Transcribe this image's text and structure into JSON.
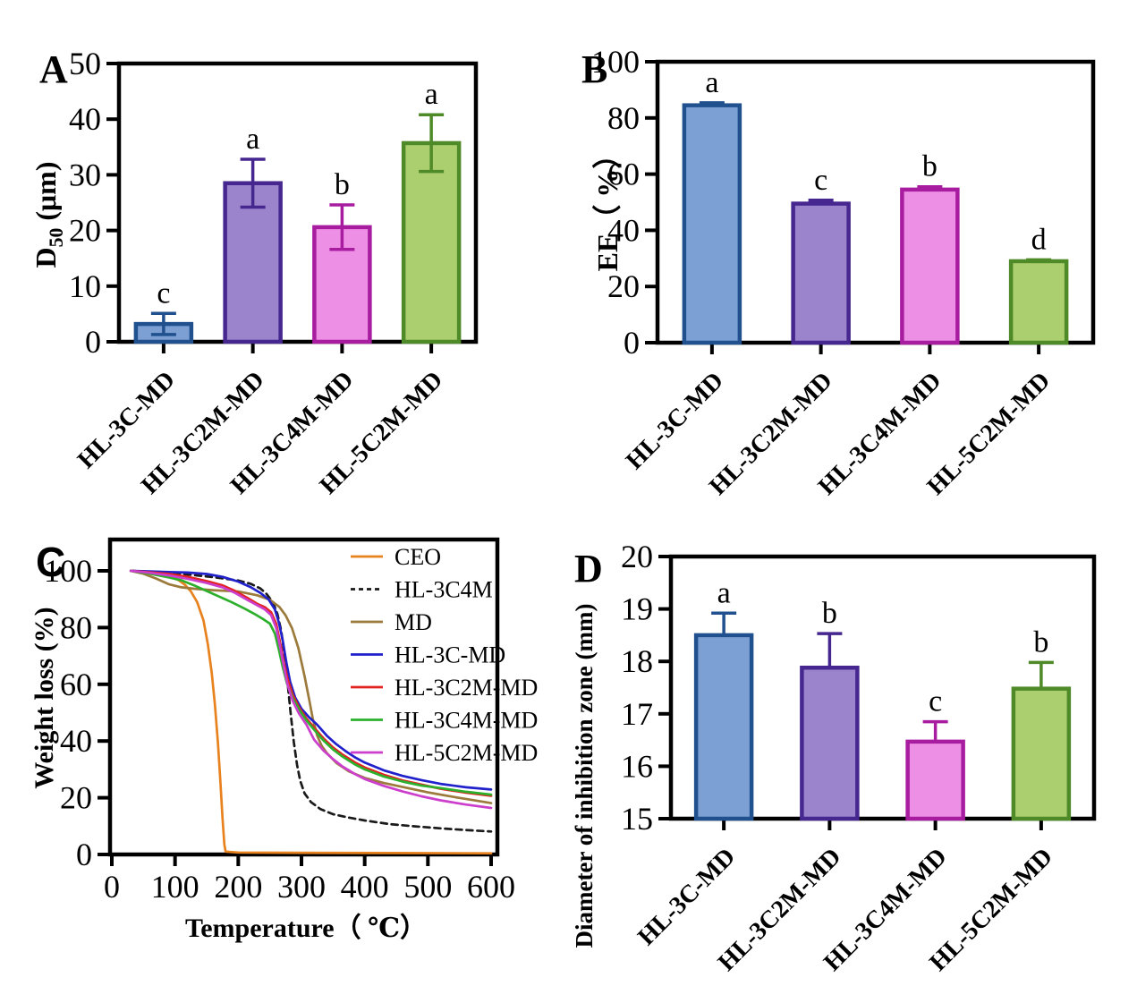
{
  "figure_background": "#ffffff",
  "chart_data": [
    {
      "panel_label": "A",
      "type": "bar",
      "title": "",
      "ylabel": {
        "prefix": "D",
        "sub": "50",
        "suffix": " (μm)"
      },
      "ylim": [
        0,
        50
      ],
      "yticks": [
        0,
        10,
        20,
        30,
        40,
        50
      ],
      "ytick_labels": [
        "0",
        "10",
        "20",
        "30",
        "40",
        "50"
      ],
      "categories": [
        "HL-3C-MD",
        "HL-3C2M-MD",
        "HL-3C4M-MD",
        "HL-5C2M-MD"
      ],
      "values": [
        3.2,
        28.5,
        20.6,
        35.7
      ],
      "errors": [
        1.9,
        4.3,
        4.0,
        5.1
      ],
      "sig_letters": [
        "c",
        "a",
        "b",
        "a"
      ],
      "error_direction": "both",
      "bar_fills": [
        "#7da0d4",
        "#9b84cb",
        "#ee8fe6",
        "#abcf6e"
      ],
      "bar_strokes": [
        "#20518e",
        "#45278f",
        "#a81da0",
        "#4f8a28"
      ],
      "grid": "off",
      "legend_position": "none"
    },
    {
      "panel_label": "B",
      "type": "bar",
      "title": "",
      "ylabel": {
        "prefix": "EE（ %）",
        "sub": "",
        "suffix": ""
      },
      "ylim": [
        0,
        100
      ],
      "yticks": [
        0,
        20,
        40,
        60,
        80,
        100
      ],
      "ytick_labels": [
        "0",
        "20",
        "40",
        "60",
        "80",
        "100"
      ],
      "categories": [
        "HL-3C-MD",
        "HL-3C2M-MD",
        "HL-3C4M-MD",
        "HL-5C2M-MD"
      ],
      "values": [
        84.5,
        49.5,
        54.5,
        29.0
      ],
      "errors": [
        0.9,
        1.2,
        1.0,
        0.5
      ],
      "sig_letters": [
        "a",
        "c",
        "b",
        "d"
      ],
      "error_direction": "up",
      "bar_fills": [
        "#7da0d4",
        "#9b84cb",
        "#ee8fe6",
        "#abcf6e"
      ],
      "bar_strokes": [
        "#20518e",
        "#45278f",
        "#a81da0",
        "#4f8a28"
      ],
      "grid": "off",
      "legend_position": "none"
    },
    {
      "panel_label": "C",
      "type": "line",
      "title": "",
      "xlabel": "Temperature（ ℃）",
      "ylabel": {
        "prefix": "Weight loss (%)",
        "sub": "",
        "suffix": ""
      },
      "xlim": [
        0,
        600
      ],
      "ylim": [
        0,
        100
      ],
      "xticks": [
        0,
        100,
        200,
        300,
        400,
        500,
        600
      ],
      "xtick_labels": [
        "0",
        "100",
        "200",
        "300",
        "400",
        "500",
        "600"
      ],
      "yticks": [
        0,
        20,
        40,
        60,
        80,
        100
      ],
      "ytick_labels": [
        "0",
        "20",
        "40",
        "60",
        "80",
        "100"
      ],
      "grid": "off",
      "legend_position": "inside-top-right",
      "series": [
        {
          "name": "CEO",
          "color": "#e8821e",
          "dash": false,
          "points": [
            [
              30,
              100
            ],
            [
              70,
              99.2
            ],
            [
              90,
              98.2
            ],
            [
              105,
              96.8
            ],
            [
              115,
              95.2
            ],
            [
              125,
              92.8
            ],
            [
              135,
              89
            ],
            [
              145,
              82.5
            ],
            [
              152,
              74
            ],
            [
              158,
              64
            ],
            [
              163,
              53
            ],
            [
              168,
              39
            ],
            [
              172,
              25
            ],
            [
              175,
              13
            ],
            [
              178,
              3.5
            ],
            [
              180,
              1
            ],
            [
              200,
              0.7
            ],
            [
              300,
              0.6
            ],
            [
              450,
              0.5
            ],
            [
              600,
              0.4
            ]
          ]
        },
        {
          "name": "HL-3C4M",
          "color": "#1a1a1a",
          "dash": true,
          "points": [
            [
              30,
              100
            ],
            [
              80,
              99.5
            ],
            [
              120,
              98.7
            ],
            [
              160,
              97.8
            ],
            [
              200,
              96.6
            ],
            [
              220,
              95.4
            ],
            [
              235,
              93.8
            ],
            [
              245,
              91.8
            ],
            [
              255,
              88.8
            ],
            [
              262,
              84.8
            ],
            [
              268,
              78.8
            ],
            [
              273,
              70.5
            ],
            [
              278,
              60.5
            ],
            [
              283,
              49.5
            ],
            [
              288,
              39.5
            ],
            [
              293,
              31.5
            ],
            [
              298,
              26
            ],
            [
              305,
              21.5
            ],
            [
              315,
              18.5
            ],
            [
              330,
              16
            ],
            [
              350,
              14.2
            ],
            [
              375,
              13
            ],
            [
              400,
              12
            ],
            [
              440,
              10.7
            ],
            [
              480,
              9.9
            ],
            [
              520,
              9.2
            ],
            [
              560,
              8.6
            ],
            [
              600,
              8.1
            ]
          ]
        },
        {
          "name": "MD",
          "color": "#9c7a3c",
          "dash": false,
          "points": [
            [
              30,
              100
            ],
            [
              50,
              99
            ],
            [
              70,
              97.3
            ],
            [
              90,
              95.3
            ],
            [
              110,
              94.2
            ],
            [
              130,
              93.7
            ],
            [
              160,
              93.2
            ],
            [
              200,
              92.7
            ],
            [
              230,
              91.4
            ],
            [
              250,
              89.8
            ],
            [
              265,
              87.3
            ],
            [
              275,
              84.3
            ],
            [
              285,
              79.8
            ],
            [
              295,
              72.8
            ],
            [
              305,
              62.8
            ],
            [
              312,
              54.8
            ],
            [
              318,
              47.8
            ],
            [
              325,
              41.8
            ],
            [
              332,
              38.3
            ],
            [
              340,
              35.8
            ],
            [
              355,
              32.3
            ],
            [
              375,
              29.3
            ],
            [
              400,
              27
            ],
            [
              430,
              25.2
            ],
            [
              460,
              23.8
            ],
            [
              500,
              21.9
            ],
            [
              540,
              20.3
            ],
            [
              570,
              19.2
            ],
            [
              600,
              18.1
            ]
          ]
        },
        {
          "name": "HL-3C-MD",
          "color": "#2121cc",
          "dash": false,
          "points": [
            [
              30,
              100
            ],
            [
              60,
              99.8
            ],
            [
              90,
              99.6
            ],
            [
              120,
              99.4
            ],
            [
              150,
              98.9
            ],
            [
              175,
              97.9
            ],
            [
              200,
              96.2
            ],
            [
              220,
              94.2
            ],
            [
              235,
              92.2
            ],
            [
              248,
              89.9
            ],
            [
              258,
              86.4
            ],
            [
              264,
              81.9
            ],
            [
              270,
              75.9
            ],
            [
              276,
              67.9
            ],
            [
              282,
              60.9
            ],
            [
              290,
              55.4
            ],
            [
              300,
              51.4
            ],
            [
              312,
              48.4
            ],
            [
              325,
              45.7
            ],
            [
              340,
              41.9
            ],
            [
              355,
              38.9
            ],
            [
              370,
              36.4
            ],
            [
              385,
              34.2
            ],
            [
              400,
              32.4
            ],
            [
              430,
              29.7
            ],
            [
              460,
              27.7
            ],
            [
              490,
              26.2
            ],
            [
              520,
              24.9
            ],
            [
              560,
              23.7
            ],
            [
              600,
              22.9
            ]
          ]
        },
        {
          "name": "HL-3C2M-MD",
          "color": "#e32222",
          "dash": false,
          "points": [
            [
              30,
              100
            ],
            [
              60,
              99.5
            ],
            [
              90,
              98.9
            ],
            [
              120,
              97.9
            ],
            [
              150,
              96.4
            ],
            [
              175,
              94.9
            ],
            [
              195,
              92.9
            ],
            [
              215,
              90.4
            ],
            [
              230,
              88.4
            ],
            [
              242,
              87.2
            ],
            [
              252,
              85.4
            ],
            [
              260,
              81.4
            ],
            [
              266,
              74.9
            ],
            [
              272,
              67.9
            ],
            [
              278,
              61.9
            ],
            [
              286,
              56.4
            ],
            [
              296,
              51.9
            ],
            [
              308,
              47.9
            ],
            [
              320,
              44.7
            ],
            [
              335,
              40.9
            ],
            [
              350,
              37.7
            ],
            [
              365,
              35.2
            ],
            [
              385,
              32.4
            ],
            [
              400,
              30.7
            ],
            [
              430,
              28.1
            ],
            [
              460,
              26.1
            ],
            [
              490,
              24.6
            ],
            [
              520,
              23.2
            ],
            [
              560,
              21.8
            ],
            [
              600,
              20.7
            ]
          ]
        },
        {
          "name": "HL-3C4M-MD",
          "color": "#2cb02c",
          "dash": false,
          "points": [
            [
              30,
              100
            ],
            [
              60,
              99
            ],
            [
              90,
              97.7
            ],
            [
              110,
              96.7
            ],
            [
              130,
              94.9
            ],
            [
              150,
              92.9
            ],
            [
              170,
              90.9
            ],
            [
              190,
              88.9
            ],
            [
              210,
              86.7
            ],
            [
              225,
              84.9
            ],
            [
              240,
              82.9
            ],
            [
              250,
              81.4
            ],
            [
              258,
              77.9
            ],
            [
              264,
              72.4
            ],
            [
              270,
              66.4
            ],
            [
              277,
              60.4
            ],
            [
              286,
              55.2
            ],
            [
              296,
              51.2
            ],
            [
              308,
              47.2
            ],
            [
              320,
              44
            ],
            [
              335,
              40.2
            ],
            [
              350,
              37
            ],
            [
              365,
              34.5
            ],
            [
              385,
              31.7
            ],
            [
              400,
              30
            ],
            [
              430,
              27.5
            ],
            [
              460,
              25.7
            ],
            [
              490,
              24.3
            ],
            [
              520,
              23.4
            ],
            [
              560,
              22.1
            ],
            [
              600,
              21.1
            ]
          ]
        },
        {
          "name": "HL-5C2M-MD",
          "color": "#cc3fcc",
          "dash": false,
          "points": [
            [
              30,
              100
            ],
            [
              60,
              99.3
            ],
            [
              90,
              98.4
            ],
            [
              120,
              97.2
            ],
            [
              150,
              95.7
            ],
            [
              175,
              94.2
            ],
            [
              195,
              92.2
            ],
            [
              215,
              89.7
            ],
            [
              230,
              87.9
            ],
            [
              242,
              86.4
            ],
            [
              252,
              84.4
            ],
            [
              260,
              79.9
            ],
            [
              266,
              73.4
            ],
            [
              272,
              66.4
            ],
            [
              278,
              59.9
            ],
            [
              286,
              54.2
            ],
            [
              296,
              49.7
            ],
            [
              308,
              45.7
            ],
            [
              320,
              40.5
            ],
            [
              335,
              36.6
            ],
            [
              350,
              33.6
            ],
            [
              365,
              31
            ],
            [
              385,
              28.3
            ],
            [
              400,
              26.6
            ],
            [
              430,
              24.2
            ],
            [
              460,
              22.2
            ],
            [
              490,
              20.5
            ],
            [
              520,
              19.1
            ],
            [
              560,
              17.6
            ],
            [
              600,
              16.4
            ]
          ]
        }
      ]
    },
    {
      "panel_label": "D",
      "type": "bar",
      "title": "",
      "ylabel": {
        "prefix": "Diameter of inhibition zone (mm)",
        "sub": "",
        "suffix": ""
      },
      "ylim": [
        15,
        20
      ],
      "yticks": [
        15,
        16,
        17,
        18,
        19,
        20
      ],
      "ytick_labels": [
        "15",
        "16",
        "17",
        "18",
        "19",
        "20"
      ],
      "categories": [
        "HL-3C-MD",
        "HL-3C2M-MD",
        "HL-3C4M-MD",
        "HL-5C2M-MD"
      ],
      "values": [
        18.5,
        17.88,
        16.47,
        17.48
      ],
      "errors": [
        0.42,
        0.65,
        0.38,
        0.5
      ],
      "sig_letters": [
        "a",
        "b",
        "c",
        "b"
      ],
      "error_direction": "up",
      "bar_fills": [
        "#7da0d4",
        "#9b84cb",
        "#ee8fe6",
        "#abcf6e"
      ],
      "bar_strokes": [
        "#20518e",
        "#45278f",
        "#a81da0",
        "#4f8a28"
      ],
      "grid": "off",
      "legend_position": "none"
    }
  ]
}
